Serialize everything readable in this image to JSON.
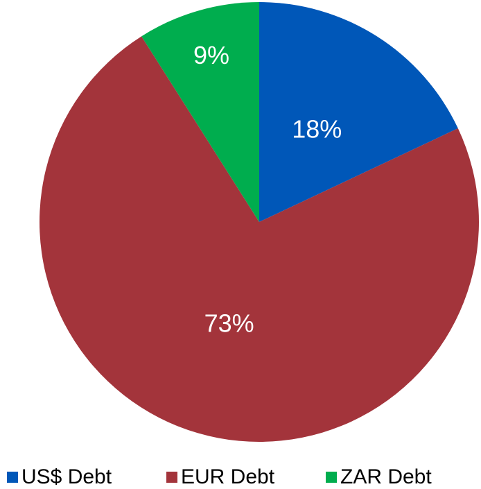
{
  "chart_data": {
    "type": "pie",
    "categories": [
      "US$ Debt",
      "EUR Debt",
      "ZAR Debt"
    ],
    "values": [
      18,
      73,
      9
    ],
    "value_labels": [
      "18%",
      "73%",
      "9%"
    ],
    "colors": [
      "#0057b8",
      "#a3343b",
      "#00ad4e"
    ],
    "legend": "bottom"
  }
}
